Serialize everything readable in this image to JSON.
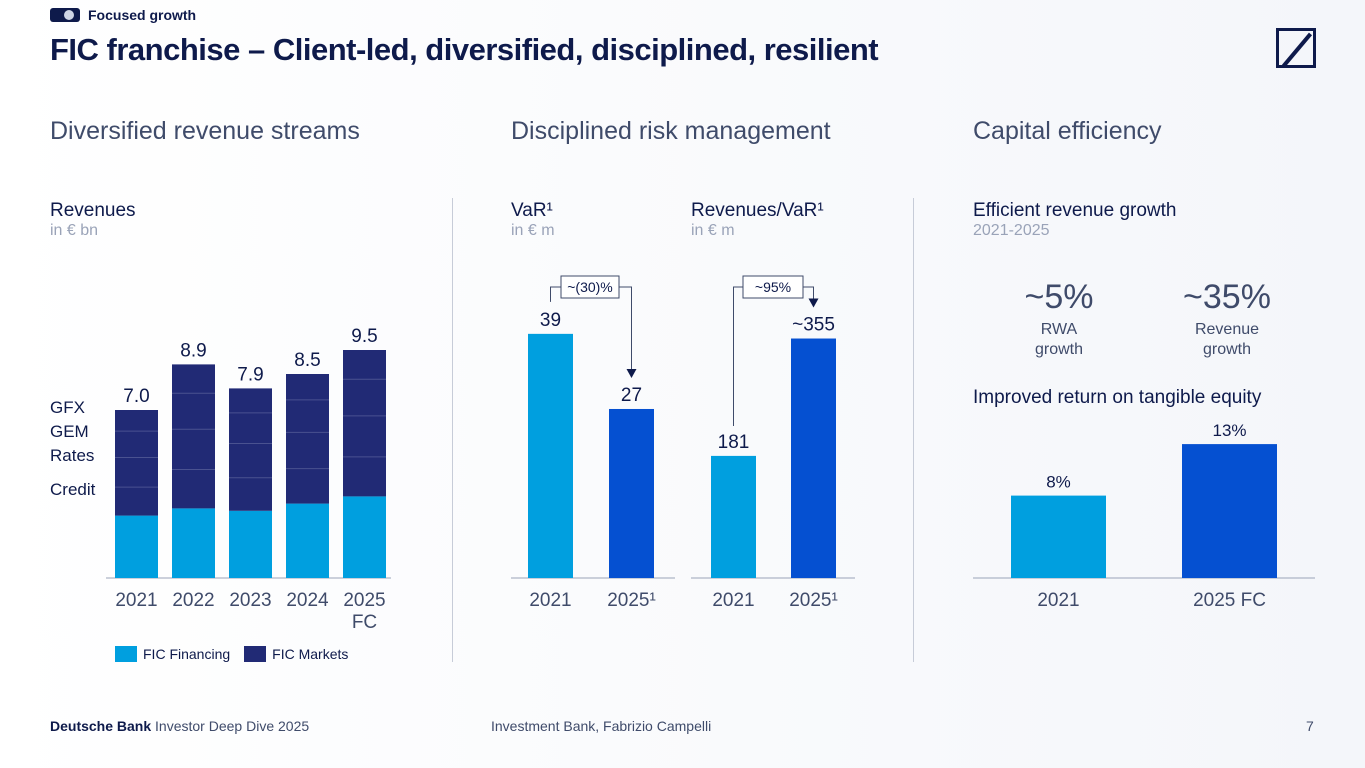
{
  "header": {
    "tag": "Focused growth",
    "title": "FIC franchise – Client-led, diversified, disciplined, resilient"
  },
  "colors": {
    "financing": "#009fdf",
    "markets": "#212a75",
    "highlight": "#0550d1",
    "navy": "#0e1a4b"
  },
  "sections": {
    "revenue": "Diversified revenue streams",
    "risk": "Disciplined risk management",
    "capital": "Capital efficiency"
  },
  "revenues": {
    "title": "Revenues",
    "unit": "in € bn",
    "segment_labels": [
      "GFX",
      "GEM",
      "Rates",
      "Credit"
    ]
  },
  "var": {
    "title": "VaR¹",
    "unit": "in € m",
    "change": "~(30)%"
  },
  "rev_var": {
    "title": "Revenues/VaR¹",
    "unit": "in € m",
    "change": "~95%"
  },
  "efficiency": {
    "title": "Efficient revenue growth",
    "period": "2021-2025",
    "kpis": [
      {
        "value": "~5%",
        "label1": "RWA",
        "label2": "growth"
      },
      {
        "value": "~35%",
        "label1": "Revenue",
        "label2": "growth"
      }
    ],
    "rote_title": "Improved return on tangible equity"
  },
  "legend": {
    "financing": "FIC Financing",
    "markets": "FIC Markets"
  },
  "footer": {
    "brand": "Deutsche Bank",
    "event": " Investor Deep Dive 2025",
    "center": "Investment Bank, Fabrizio Campelli",
    "page": "7"
  },
  "chart_data": [
    {
      "type": "bar",
      "stacked": true,
      "title": "Revenues",
      "ylabel": "in € bn",
      "categories": [
        "2021",
        "2022",
        "2023",
        "2024",
        "2025"
      ],
      "category_suffix": [
        "",
        "",
        "",
        "",
        "FC"
      ],
      "totals": [
        7.0,
        8.9,
        7.9,
        8.5,
        9.5
      ],
      "total_labels": [
        "7.0",
        "8.9",
        "7.9",
        "8.5",
        "9.5"
      ],
      "series": [
        {
          "name": "FIC Financing",
          "values": [
            2.6,
            2.9,
            2.8,
            3.1,
            3.4
          ]
        },
        {
          "name": "FIC Markets",
          "values": [
            4.4,
            6.0,
            5.1,
            5.4,
            6.1
          ]
        }
      ],
      "ylim": [
        0,
        10
      ]
    },
    {
      "type": "bar",
      "title": "VaR¹",
      "ylabel": "in € m",
      "categories": [
        "2021",
        "2025¹"
      ],
      "values": [
        39,
        27
      ],
      "value_labels": [
        "39",
        "27"
      ],
      "ylim": [
        0,
        40
      ]
    },
    {
      "type": "bar",
      "title": "Revenues/VaR¹",
      "ylabel": "in € m",
      "categories": [
        "2021",
        "2025¹"
      ],
      "values": [
        181,
        355
      ],
      "value_labels": [
        "181",
        "~355"
      ],
      "ylim": [
        0,
        364
      ]
    },
    {
      "type": "bar",
      "title": "Improved return on tangible equity",
      "categories": [
        "2021",
        "2025 FC"
      ],
      "values": [
        8,
        13
      ],
      "value_labels": [
        "8%",
        "13%"
      ],
      "ylim": [
        0,
        17
      ]
    }
  ]
}
